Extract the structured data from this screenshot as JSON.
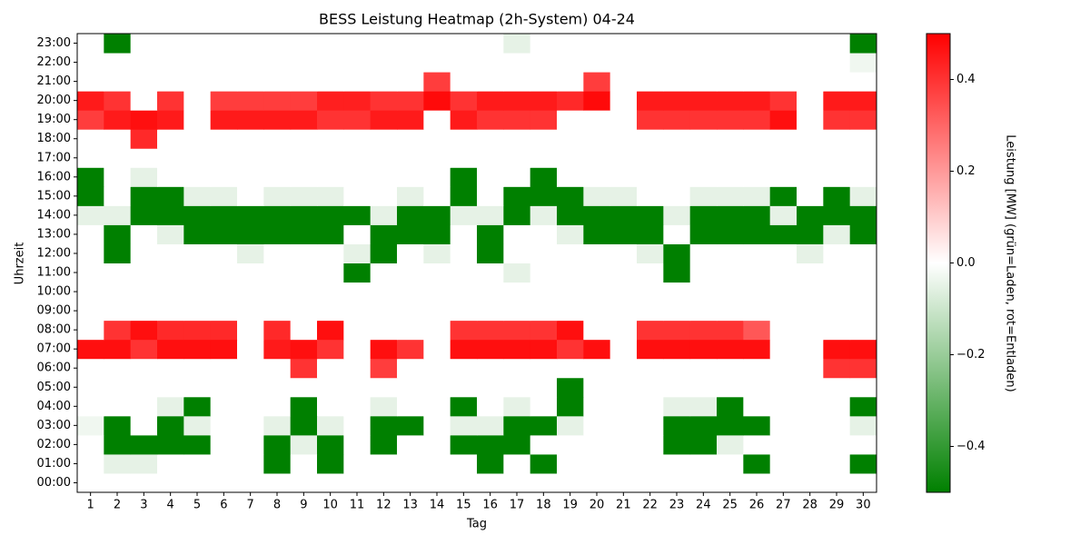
{
  "chart_data": {
    "type": "heatmap",
    "title": "BESS Leistung Heatmap (2h-System) 04-24",
    "x_label": "Tag",
    "y_label": "Uhrzeit",
    "colorbar_label": "Leistung [MW] (grün=Laden, rot=Entladen)",
    "x": [
      1,
      2,
      3,
      4,
      5,
      6,
      7,
      8,
      9,
      10,
      11,
      12,
      13,
      14,
      15,
      16,
      17,
      18,
      19,
      20,
      21,
      22,
      23,
      24,
      25,
      26,
      27,
      28,
      29,
      30
    ],
    "y": [
      "00:00",
      "01:00",
      "02:00",
      "03:00",
      "04:00",
      "05:00",
      "06:00",
      "07:00",
      "08:00",
      "09:00",
      "10:00",
      "11:00",
      "12:00",
      "13:00",
      "14:00",
      "15:00",
      "16:00",
      "17:00",
      "18:00",
      "19:00",
      "20:00",
      "21:00",
      "22:00",
      "23:00"
    ],
    "z": [
      [
        0,
        0,
        0,
        0,
        0,
        0,
        0,
        0,
        0,
        0,
        0,
        0,
        0,
        0,
        0,
        0,
        0,
        0,
        0,
        0,
        0,
        0,
        0,
        0,
        0,
        0,
        0,
        0,
        0,
        0
      ],
      [
        0,
        -0.05,
        -0.05,
        0,
        0,
        0,
        0,
        -0.5,
        0,
        -0.5,
        0,
        0,
        0,
        0,
        0,
        -0.5,
        0,
        -0.5,
        0,
        0,
        0,
        0,
        0,
        0,
        0,
        -0.5,
        0,
        0,
        0,
        -0.5
      ],
      [
        0,
        -0.5,
        -0.5,
        -0.5,
        -0.5,
        0,
        0,
        -0.5,
        -0.05,
        -0.5,
        0,
        -0.5,
        0,
        0,
        -0.5,
        -0.5,
        -0.5,
        0,
        0,
        0,
        0,
        0,
        -0.5,
        -0.5,
        -0.05,
        0,
        0,
        0,
        0,
        0
      ],
      [
        -0.03,
        -0.5,
        0,
        -0.5,
        -0.05,
        0,
        0,
        -0.05,
        -0.5,
        -0.05,
        0,
        -0.5,
        -0.5,
        0,
        -0.05,
        -0.05,
        -0.5,
        -0.5,
        -0.05,
        0,
        0,
        0,
        -0.5,
        -0.5,
        -0.5,
        -0.5,
        0,
        0,
        0,
        -0.05
      ],
      [
        0,
        0,
        0,
        -0.05,
        -0.5,
        0,
        0,
        0,
        -0.5,
        0,
        0,
        -0.05,
        0,
        0,
        -0.5,
        0,
        -0.05,
        0,
        -0.5,
        0,
        0,
        0,
        -0.05,
        -0.05,
        -0.5,
        0,
        0,
        0,
        0,
        -0.5
      ],
      [
        0,
        0,
        0,
        0,
        0,
        0,
        0,
        0,
        0,
        0,
        0,
        0,
        0,
        0,
        0,
        0,
        0,
        0,
        -0.5,
        0,
        0,
        0,
        0,
        0,
        0,
        0,
        0,
        0,
        0,
        0
      ],
      [
        0,
        0,
        0,
        0,
        0,
        0,
        0,
        0,
        0.4,
        0,
        0,
        0.38,
        0,
        0,
        0,
        0,
        0,
        0,
        0,
        0,
        0,
        0,
        0,
        0,
        0,
        0,
        0,
        0,
        0.4,
        0.4
      ],
      [
        0.47,
        0.47,
        0.4,
        0.47,
        0.47,
        0.47,
        0,
        0.45,
        0.47,
        0.4,
        0,
        0.47,
        0.4,
        0,
        0.47,
        0.47,
        0.47,
        0.47,
        0.4,
        0.47,
        0,
        0.47,
        0.47,
        0.47,
        0.47,
        0.47,
        0,
        0,
        0.47,
        0.47
      ],
      [
        0,
        0.4,
        0.47,
        0.42,
        0.42,
        0.42,
        0,
        0.42,
        0,
        0.47,
        0,
        0,
        0,
        0,
        0.4,
        0.4,
        0.4,
        0.4,
        0.47,
        0,
        0,
        0.4,
        0.4,
        0.4,
        0.4,
        0.33,
        0,
        0,
        0,
        0
      ],
      [
        0,
        0,
        0,
        0,
        0,
        0,
        0,
        0,
        0,
        0,
        0,
        0,
        0,
        0,
        0,
        0,
        0,
        0,
        0,
        0,
        0,
        0,
        0,
        0,
        0,
        0,
        0,
        0,
        0,
        0
      ],
      [
        0,
        0,
        0,
        0,
        0,
        0,
        0,
        0,
        0,
        0,
        0,
        0,
        0,
        0,
        0,
        0,
        0,
        0,
        0,
        0,
        0,
        0,
        0,
        0,
        0,
        0,
        0,
        0,
        0,
        0
      ],
      [
        0,
        0,
        0,
        0,
        0,
        0,
        0,
        0,
        0,
        0,
        -0.5,
        0,
        0,
        0,
        0,
        0,
        -0.05,
        0,
        0,
        0,
        0,
        0,
        -0.5,
        0,
        0,
        0,
        0,
        0,
        0,
        0
      ],
      [
        0,
        -0.5,
        0,
        0,
        0,
        0,
        -0.05,
        0,
        0,
        0,
        -0.05,
        -0.5,
        0,
        -0.05,
        0,
        -0.5,
        0,
        0,
        0,
        0,
        0,
        -0.05,
        -0.5,
        0,
        0,
        0,
        0,
        -0.05,
        0,
        0
      ],
      [
        0,
        -0.5,
        0,
        -0.05,
        -0.5,
        -0.5,
        -0.5,
        -0.5,
        -0.5,
        -0.5,
        0,
        -0.5,
        -0.5,
        -0.5,
        0,
        -0.5,
        0,
        0,
        -0.05,
        -0.5,
        -0.5,
        -0.5,
        0,
        -0.5,
        -0.5,
        -0.5,
        -0.5,
        -0.5,
        -0.05,
        -0.5
      ],
      [
        -0.05,
        -0.05,
        -0.5,
        -0.5,
        -0.5,
        -0.5,
        -0.5,
        -0.5,
        -0.5,
        -0.5,
        -0.5,
        -0.05,
        -0.5,
        -0.5,
        -0.05,
        -0.05,
        -0.5,
        -0.05,
        -0.5,
        -0.5,
        -0.5,
        -0.5,
        -0.05,
        -0.5,
        -0.5,
        -0.5,
        -0.05,
        -0.5,
        -0.5,
        -0.5
      ],
      [
        -0.5,
        0,
        -0.5,
        -0.5,
        -0.05,
        -0.05,
        0,
        -0.05,
        -0.05,
        -0.05,
        0,
        0,
        -0.05,
        0,
        -0.5,
        0,
        -0.5,
        -0.5,
        -0.5,
        -0.05,
        -0.05,
        0,
        0,
        -0.05,
        -0.05,
        -0.05,
        -0.5,
        0,
        -0.5,
        -0.05
      ],
      [
        -0.5,
        0,
        -0.05,
        0,
        0,
        0,
        0,
        0,
        0,
        0,
        0,
        0,
        0,
        0,
        -0.5,
        0,
        0,
        -0.5,
        0,
        0,
        0,
        0,
        0,
        0,
        0,
        0,
        0,
        0,
        0,
        0
      ],
      [
        0,
        0,
        0,
        0,
        0,
        0,
        0,
        0,
        0,
        0,
        0,
        0,
        0,
        0,
        0,
        0,
        0,
        0,
        0,
        0,
        0,
        0,
        0,
        0,
        0,
        0,
        0,
        0,
        0,
        0
      ],
      [
        0,
        0,
        0.42,
        0,
        0,
        0,
        0,
        0,
        0,
        0,
        0,
        0,
        0,
        0,
        0,
        0,
        0,
        0,
        0,
        0,
        0,
        0,
        0,
        0,
        0,
        0,
        0,
        0,
        0,
        0
      ],
      [
        0.38,
        0.45,
        0.47,
        0.45,
        0,
        0.45,
        0.45,
        0.45,
        0.45,
        0.4,
        0.4,
        0.45,
        0.45,
        0,
        0.45,
        0.4,
        0.4,
        0.4,
        0,
        0,
        0,
        0.4,
        0.4,
        0.4,
        0.4,
        0.4,
        0.47,
        0,
        0.4,
        0.4
      ],
      [
        0.45,
        0.4,
        0,
        0.4,
        0,
        0.38,
        0.38,
        0.38,
        0.38,
        0.44,
        0.44,
        0.4,
        0.4,
        0.48,
        0.4,
        0.45,
        0.45,
        0.45,
        0.42,
        0.48,
        0,
        0.45,
        0.45,
        0.45,
        0.45,
        0.45,
        0.4,
        0,
        0.45,
        0.45
      ],
      [
        0,
        0,
        0,
        0,
        0,
        0,
        0,
        0,
        0,
        0,
        0,
        0,
        0,
        0.38,
        0,
        0,
        0,
        0,
        0,
        0.38,
        0,
        0,
        0,
        0,
        0,
        0,
        0,
        0,
        0,
        0
      ],
      [
        0,
        0,
        0,
        0,
        0,
        0,
        0,
        0,
        0,
        0,
        0,
        0,
        0,
        0,
        0,
        0,
        0,
        0,
        0,
        0,
        0,
        0,
        0,
        0,
        0,
        0,
        0,
        0,
        0,
        -0.03
      ],
      [
        0,
        -0.5,
        0,
        0,
        0,
        0,
        0,
        0,
        0,
        0,
        0,
        0,
        0,
        0,
        0,
        0,
        -0.05,
        0,
        0,
        0,
        0,
        0,
        0,
        0,
        0,
        0,
        0,
        0,
        0,
        -0.5
      ]
    ],
    "zlim": [
      -0.5,
      0.5
    ],
    "colorscale": [
      "#008000",
      "#ffffff",
      "#ff0000"
    ],
    "colorbar_ticks": [
      {
        "value": -0.4,
        "label": "−0.4"
      },
      {
        "value": -0.2,
        "label": "−0.2"
      },
      {
        "value": 0,
        "label": "0.0"
      },
      0.2,
      0.4
    ]
  }
}
